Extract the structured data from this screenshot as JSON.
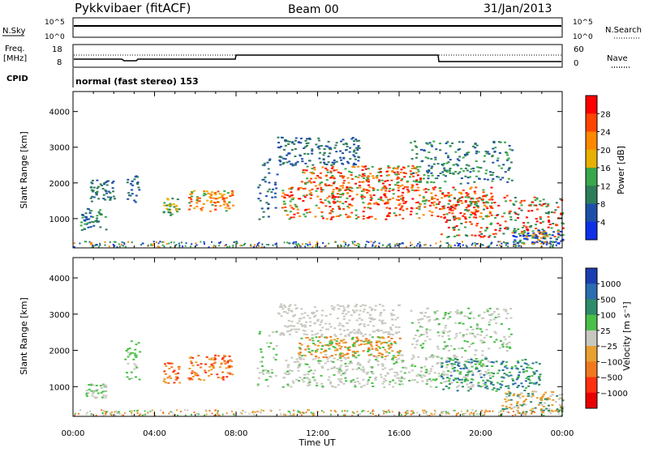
{
  "header": {
    "station": "Pykkvibaer (fitACF)",
    "beam": "Beam 00",
    "date": "31/Jan/2013"
  },
  "noise_panel": {
    "left_label": "N.Sky",
    "right_label": "N.Search",
    "right_ticks": [
      "10^5",
      "10^0"
    ],
    "left_ticks": [
      "10^5",
      "10^0"
    ]
  },
  "freq_panel": {
    "left_label_1": "Freq.",
    "left_label_2": "[MHz]",
    "left_ticks": [
      "18",
      "8"
    ],
    "right_label": "Nave",
    "right_ticks": [
      "60",
      "0"
    ]
  },
  "cpid_panel": {
    "label": "CPID",
    "text": "normal (fast stereo) 153"
  },
  "x_axis": {
    "ticks": [
      "00:00",
      "04:00",
      "08:00",
      "12:00",
      "16:00",
      "20:00",
      "00:00"
    ],
    "label": "Time UT"
  },
  "chart_data": [
    {
      "type": "heatmap",
      "name": "power",
      "ylabel": "Slant Range [km]",
      "yticks": [
        "1000",
        "2000",
        "3000",
        "4000"
      ],
      "ylim": [
        180,
        4560
      ],
      "xlim_hours": [
        0,
        24
      ],
      "colorbar_label": "Power [dB]",
      "colorbar_ticks": [
        "28",
        "24",
        "20",
        "16",
        "12",
        "8",
        "4"
      ],
      "colorbar_colors": [
        "#ff0000",
        "#ff4400",
        "#ff8800",
        "#e8b000",
        "#3aa84a",
        "#2e7d5a",
        "#1e4fa8",
        "#1030e8"
      ]
    },
    {
      "type": "heatmap",
      "name": "velocity",
      "ylabel": "Slant Range [km]",
      "yticks": [
        "1000",
        "2000",
        "3000",
        "4000"
      ],
      "ylim": [
        180,
        4560
      ],
      "xlim_hours": [
        0,
        24
      ],
      "colorbar_label": "Velocity [m s⁻¹]",
      "colorbar_ticks": [
        "1000",
        "500",
        "100",
        "25",
        "−25",
        "−100",
        "−500",
        "−1000"
      ],
      "colorbar_colors": [
        "#1a3fb0",
        "#2a6db0",
        "#2e8c6a",
        "#4ac048",
        "#c8c8c0",
        "#e8a030",
        "#f07820",
        "#ff3010",
        "#e80000"
      ]
    }
  ]
}
